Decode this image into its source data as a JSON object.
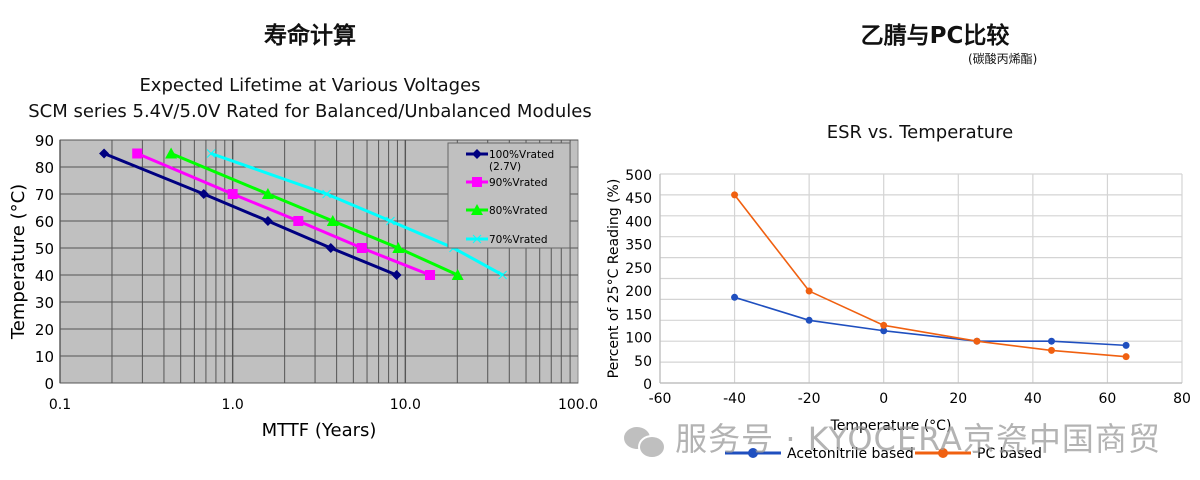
{
  "left_panel": {
    "heading": "寿命计算"
  },
  "right_panel": {
    "heading": "乙腈与PC比较",
    "heading_note": "(碳酸丙烯酯)"
  },
  "watermark": {
    "icon": "wechat-icon",
    "text": "服务号 · KYOCERA京瓷中国商贸"
  },
  "colors": {
    "plot_bg_left": "#c0c0c0",
    "series_100": "#000080",
    "series_90": "#ff00ff",
    "series_80": "#00ff00",
    "series_70": "#00ffff",
    "acetonitrile": "#1f4fbf",
    "pc": "#f06010"
  },
  "chart_data": [
    {
      "type": "line",
      "title": "Expected Lifetime at Various Voltages",
      "subtitle": "SCM series 5.4V/5.0V Rated for Balanced/Unbalanced Modules",
      "xlabel": "MTTF (Years)",
      "ylabel": "Temperature (°C)",
      "xscale": "log",
      "xlim": [
        0.1,
        100
      ],
      "ylim": [
        0,
        90
      ],
      "xticks": [
        "0.1",
        "1.0",
        "10.0",
        "100.0"
      ],
      "yticks": [
        "0",
        "10",
        "20",
        "30",
        "40",
        "50",
        "60",
        "70",
        "80",
        "90"
      ],
      "grid": true,
      "legend_position": "top-right",
      "series": [
        {
          "name": "100%Vrated",
          "name_line2": "(2.7V)",
          "marker": "diamond",
          "x": [
            0.18,
            0.68,
            1.6,
            3.7,
            8.9
          ],
          "y": [
            85,
            70,
            60,
            50,
            40
          ]
        },
        {
          "name": "90%Vrated",
          "marker": "square",
          "x": [
            0.28,
            1.0,
            2.4,
            5.6,
            13.9
          ],
          "y": [
            85,
            70,
            60,
            50,
            40
          ]
        },
        {
          "name": "80%Vrated",
          "marker": "triangle",
          "x": [
            0.44,
            1.6,
            3.8,
            9.1,
            20.1
          ],
          "y": [
            85,
            70,
            60,
            50,
            40
          ]
        },
        {
          "name": "70%Vrated",
          "marker": "x",
          "x": [
            0.75,
            3.5,
            8.2,
            19.0,
            36.6
          ],
          "y": [
            85,
            70,
            60,
            50,
            40
          ]
        }
      ]
    },
    {
      "type": "line",
      "title": "ESR vs. Temperature",
      "xlabel": "Temperature (°C)",
      "ylabel": "Percent of 25°C Reading (%)",
      "xlim": [
        -60,
        80
      ],
      "ylim": [
        0,
        500
      ],
      "xticks": [
        "-60",
        "-40",
        "-20",
        "0",
        "20",
        "40",
        "60",
        "80"
      ],
      "yticks": [
        "0",
        "50",
        "100",
        "150",
        "200",
        "250",
        "350",
        "400",
        "450",
        "500"
      ],
      "grid": true,
      "legend_position": "bottom",
      "x": [
        -40,
        -20,
        0,
        25,
        45,
        65
      ],
      "series": [
        {
          "name": "Acetonitrile based",
          "values": [
            205,
            150,
            125,
            100,
            100,
            90
          ]
        },
        {
          "name": "PC based",
          "values": [
            450,
            220,
            138,
            100,
            78,
            63
          ]
        }
      ]
    }
  ]
}
